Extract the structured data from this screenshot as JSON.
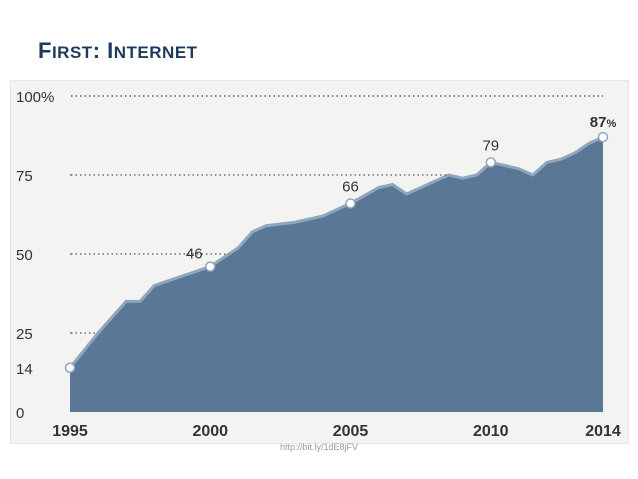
{
  "slide": {
    "title_first_initial": "F",
    "title_first_rest": "IRST",
    "title_sep": ": ",
    "title_second_initial": "I",
    "title_second_rest": "NTERNET"
  },
  "source": "http://bit.ly/1dE8jFV",
  "colors": {
    "area": "#5a7895",
    "area_edge": "#8fa6bd",
    "title": "#1f3a5c",
    "axis_text": "#333333",
    "grid": "#555555"
  },
  "chart_data": {
    "type": "area",
    "title": "FIRST: INTERNET",
    "xlabel": "",
    "ylabel": "",
    "xlim": [
      1995,
      2014
    ],
    "ylim": [
      0,
      100
    ],
    "x_tick_labels": [
      "1995",
      "2000",
      "2005",
      "2010",
      "2014"
    ],
    "y_tick_labels": [
      "100%",
      "75",
      "50",
      "25",
      "14",
      "0"
    ],
    "y_grid_values": [
      100,
      75,
      50,
      25
    ],
    "grid": true,
    "series": [
      {
        "x": [
          1995,
          1996,
          1997,
          1997.5,
          1998,
          1999,
          2000,
          2001,
          2001.5,
          2002,
          2003,
          2004,
          2005,
          2006,
          2006.5,
          2007,
          2007.5,
          2008,
          2008.5,
          2009,
          2009.5,
          2010,
          2010.5,
          2011,
          2011.5,
          2012,
          2012.5,
          2013,
          2013.5,
          2014
        ],
        "values": [
          14,
          25,
          35,
          35,
          40,
          43,
          46,
          52,
          57,
          59,
          60,
          62,
          66,
          71,
          72,
          69,
          71,
          73,
          75,
          74,
          75,
          79,
          78,
          77,
          75,
          79,
          80,
          82,
          85,
          87
        ]
      }
    ],
    "annotations": [
      {
        "x": 1995,
        "value": 14,
        "label": "14"
      },
      {
        "x": 2000,
        "value": 46,
        "label": "46"
      },
      {
        "x": 2005,
        "value": 66,
        "label": "66"
      },
      {
        "x": 2010,
        "value": 79,
        "label": "79"
      },
      {
        "x": 2014,
        "value": 87,
        "label": "87",
        "suffix": "%"
      }
    ]
  }
}
